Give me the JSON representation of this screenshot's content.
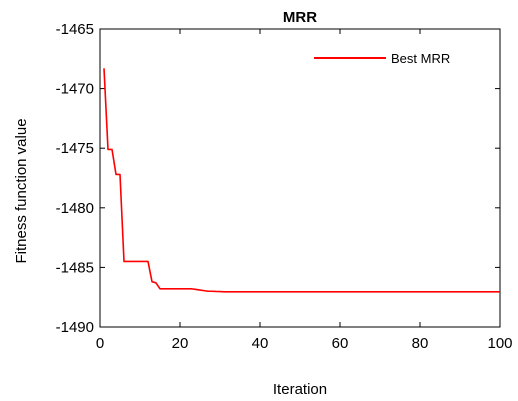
{
  "chart_data": {
    "type": "line",
    "title": "MRR",
    "xlabel": "Iteration",
    "ylabel": "Fitness function value",
    "xlim": [
      0,
      100
    ],
    "ylim": [
      -1490,
      -1465
    ],
    "xticks": [
      0,
      20,
      40,
      60,
      80,
      100
    ],
    "yticks": [
      -1465,
      -1470,
      -1475,
      -1480,
      -1485,
      -1490
    ],
    "grid": false,
    "legend_position": "top-right",
    "series": [
      {
        "name": "Best MRR",
        "color": "#ff0000",
        "x": [
          1,
          2,
          3,
          4,
          5,
          6,
          7,
          8,
          9,
          10,
          11,
          12,
          13,
          14,
          15,
          16,
          17,
          18,
          19,
          20,
          21,
          22,
          23,
          24,
          25,
          26,
          27,
          28,
          29,
          30,
          31,
          32,
          33,
          34,
          35,
          40,
          50,
          60,
          70,
          80,
          90,
          100
        ],
        "y": [
          -1468.3,
          -1475.1,
          -1475.1,
          -1477.2,
          -1477.2,
          -1484.5,
          -1484.5,
          -1484.5,
          -1484.5,
          -1484.5,
          -1484.5,
          -1484.5,
          -1486.2,
          -1486.3,
          -1486.8,
          -1486.8,
          -1486.8,
          -1486.8,
          -1486.8,
          -1486.8,
          -1486.8,
          -1486.8,
          -1486.8,
          -1486.85,
          -1486.9,
          -1486.95,
          -1487.0,
          -1487.0,
          -1487.02,
          -1487.03,
          -1487.05,
          -1487.05,
          -1487.05,
          -1487.05,
          -1487.05,
          -1487.05,
          -1487.05,
          -1487.05,
          -1487.05,
          -1487.05,
          -1487.05,
          -1487.05
        ]
      }
    ]
  }
}
